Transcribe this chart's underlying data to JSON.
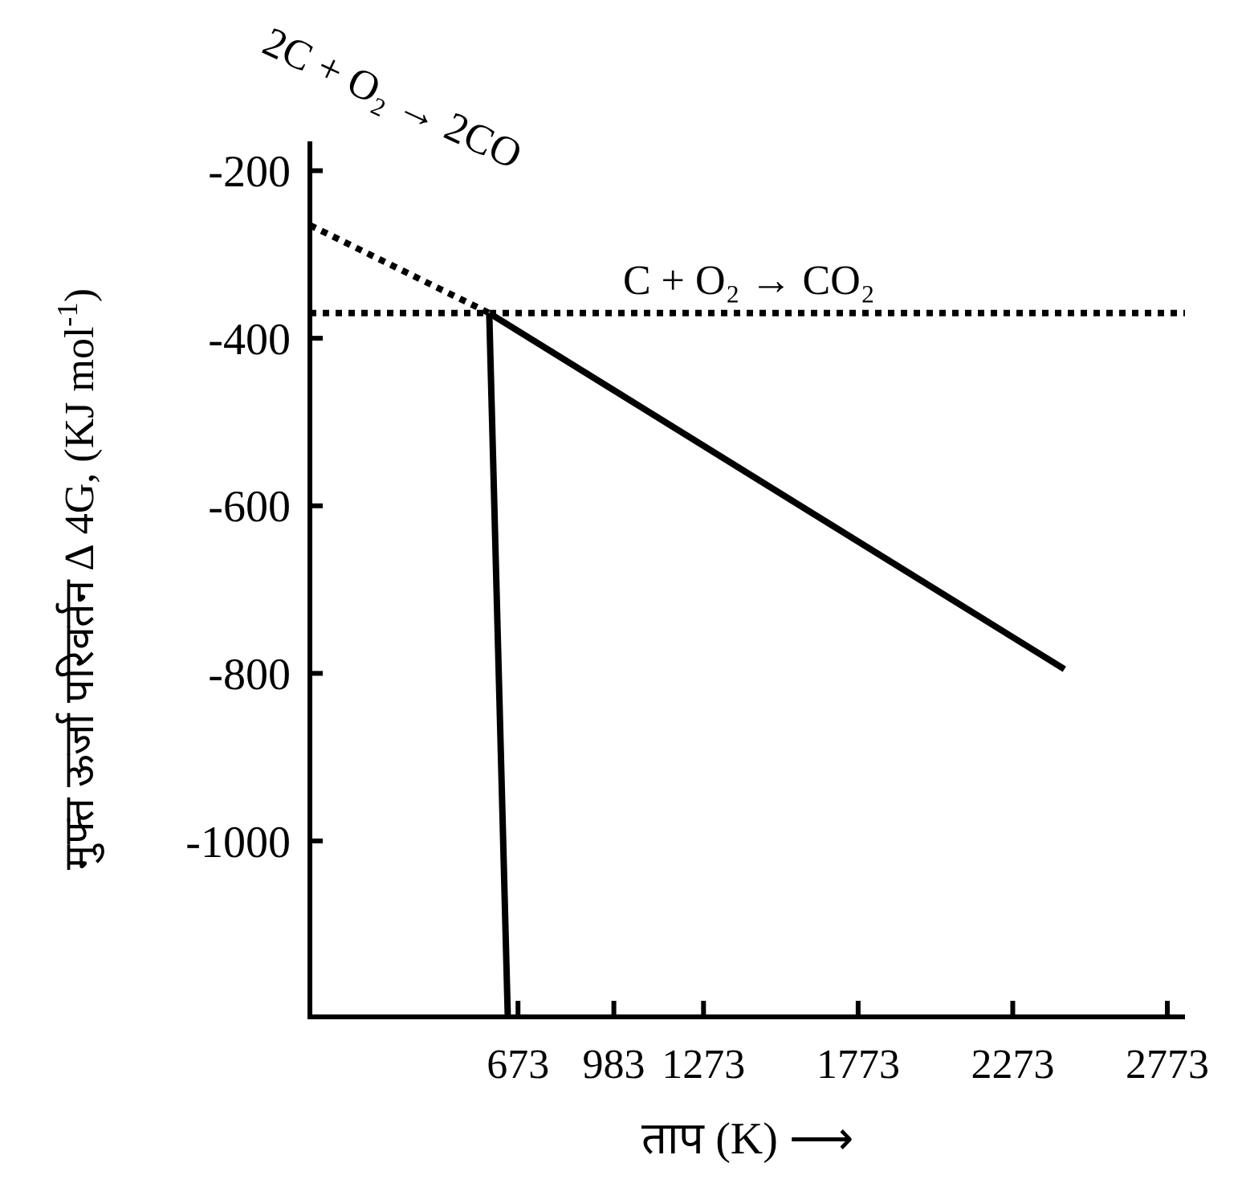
{
  "chart_data": {
    "type": "line",
    "xlabel": "ताप (K) ⟶",
    "ylabel": "मुफ्त ऊर्जा परिवर्तन ∆ 4G, (KJ mol$^{-1}$)",
    "xlim": [
      0,
      2830
    ],
    "xticks": [
      673,
      983,
      1273,
      1773,
      2273,
      2773
    ],
    "ylim": [
      -1210,
      -165
    ],
    "yticks": [
      -200,
      -400,
      -600,
      -800,
      -1000
    ],
    "grid": false,
    "marker": "none",
    "series": [
      {
        "color": "#000000",
        "line_style": "dotted",
        "x": [
          0,
          580
        ],
        "values": [
          -265,
          -370
        ]
      },
      {
        "color": "#000000",
        "line_style": "solid",
        "x": [
          580,
          2440
        ],
        "values": [
          -370,
          -795
        ]
      },
      {
        "color": "#000000",
        "line_style": "dotted",
        "x": [
          0,
          2830
        ],
        "values": [
          -370,
          -370
        ]
      },
      {
        "color": "#000000",
        "line_style": "solid",
        "x": [
          580,
          640
        ],
        "values": [
          -370,
          -1210
        ]
      }
    ],
    "annotations": [
      {
        "text": "2C + O₂ → 2CO",
        "x": 300,
        "y": -320
      },
      {
        "text": "C + O₂ → CO₂",
        "x": 1420,
        "y": -370
      }
    ]
  }
}
